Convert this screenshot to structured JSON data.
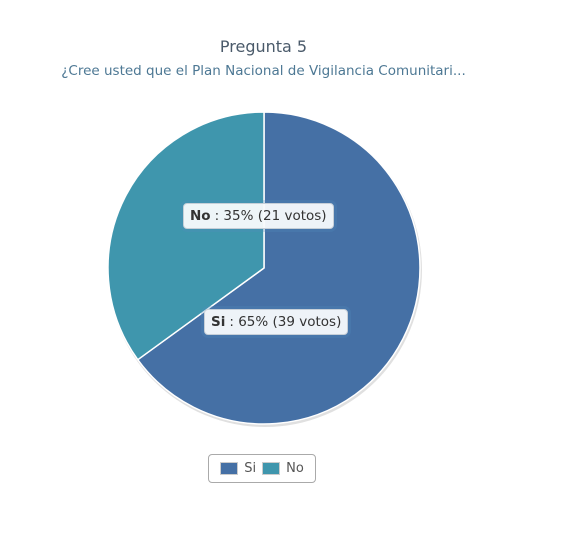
{
  "chart_data": {
    "type": "pie",
    "title": "Pregunta 5",
    "subtitle": "¿Cree usted que el Plan Nacional de Vigilancia Comunitari...",
    "slices": [
      {
        "name": "Si",
        "percent": 65,
        "votes": 39,
        "pct_label": ": 65% (39 votos)",
        "color": "#4570a5"
      },
      {
        "name": "No",
        "percent": 35,
        "votes": 21,
        "pct_label": ": 35% (21 votos)",
        "color": "#3f96ad"
      }
    ],
    "legend": {
      "placement": "bottom-center",
      "items": [
        "Si",
        "No"
      ]
    }
  }
}
